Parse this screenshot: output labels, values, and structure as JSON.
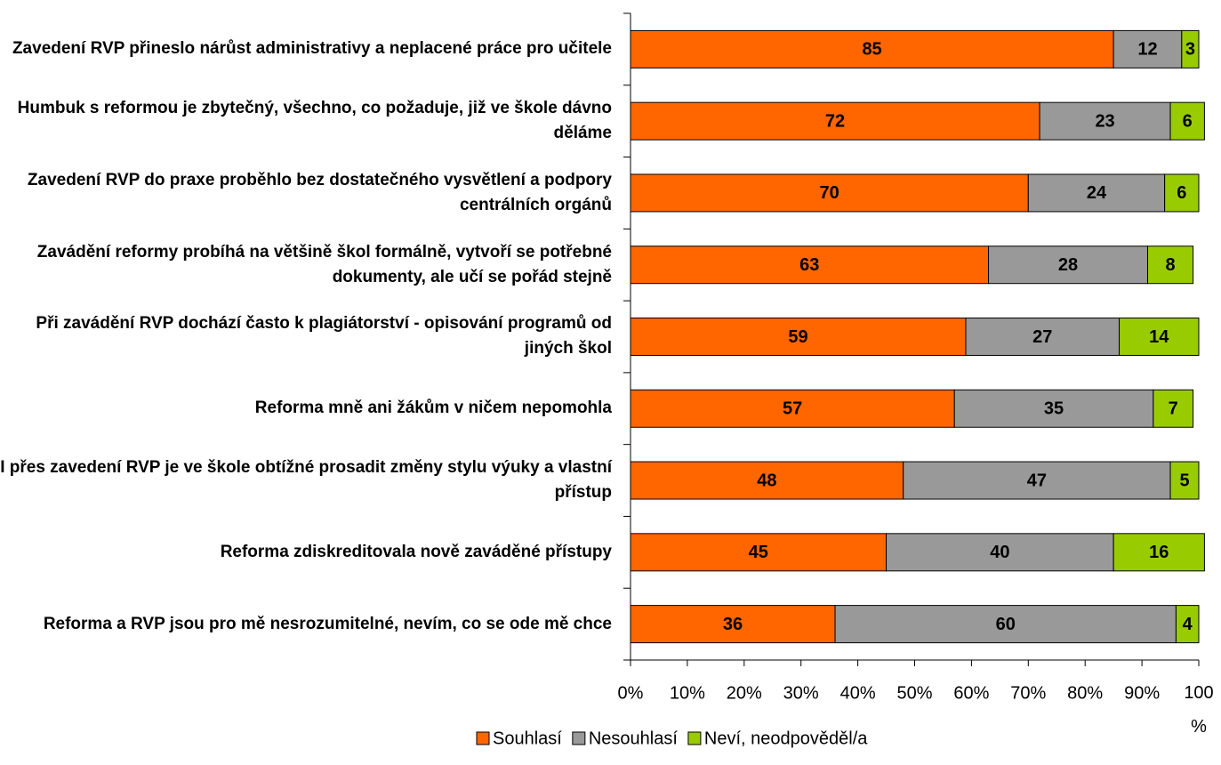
{
  "chart_data": {
    "type": "bar",
    "orientation": "horizontal",
    "stacked": true,
    "categories": [
      "Zavedení RVP přineslo nárůst administrativy a neplacené práce pro učitele",
      "Humbuk s reformou je zbytečný, všechno, co požaduje, již ve škole dávno děláme",
      "Zavedení RVP do praxe proběhlo bez dostatečného vysvětlení a podpory centrálních orgánů",
      "Zavádění reformy probíhá na většině škol formálně, vytvoří se potřebné dokumenty, ale učí se pořád stejně",
      "Při zavádění RVP dochází často k plagiátorství - opisování programů od jiných škol",
      "Reforma mně ani žákům v ničem nepomohla",
      "I přes zavedení RVP je ve škole obtížné prosadit změny stylu výuky a vlastní přístup",
      "Reforma zdiskreditovala nově zaváděné přístupy",
      "Reforma a RVP jsou pro mě nesrozumitelné, nevím, co se ode mě chce"
    ],
    "series": [
      {
        "name": "Souhlasí",
        "color": "#ff6600",
        "values": [
          85,
          72,
          70,
          63,
          59,
          57,
          48,
          45,
          36
        ]
      },
      {
        "name": "Nesouhlasí",
        "color": "#999999",
        "values": [
          12,
          23,
          24,
          28,
          27,
          35,
          47,
          40,
          60
        ]
      },
      {
        "name": "Neví, neodpověděl/a",
        "color": "#99cc00",
        "values": [
          3,
          6,
          6,
          8,
          14,
          7,
          5,
          16,
          4
        ]
      }
    ],
    "xlim": [
      0,
      100
    ],
    "xticks": [
      {
        "value": 0,
        "label": "0%"
      },
      {
        "value": 10,
        "label": "10%"
      },
      {
        "value": 20,
        "label": "20%"
      },
      {
        "value": 30,
        "label": "30%"
      },
      {
        "value": 40,
        "label": "40%"
      },
      {
        "value": 50,
        "label": "50%"
      },
      {
        "value": 60,
        "label": "60%"
      },
      {
        "value": 70,
        "label": "70%"
      },
      {
        "value": 80,
        "label": "80%"
      },
      {
        "value": 90,
        "label": "90%"
      },
      {
        "value": 100,
        "label": "100 %"
      }
    ],
    "legend": "bottom"
  }
}
